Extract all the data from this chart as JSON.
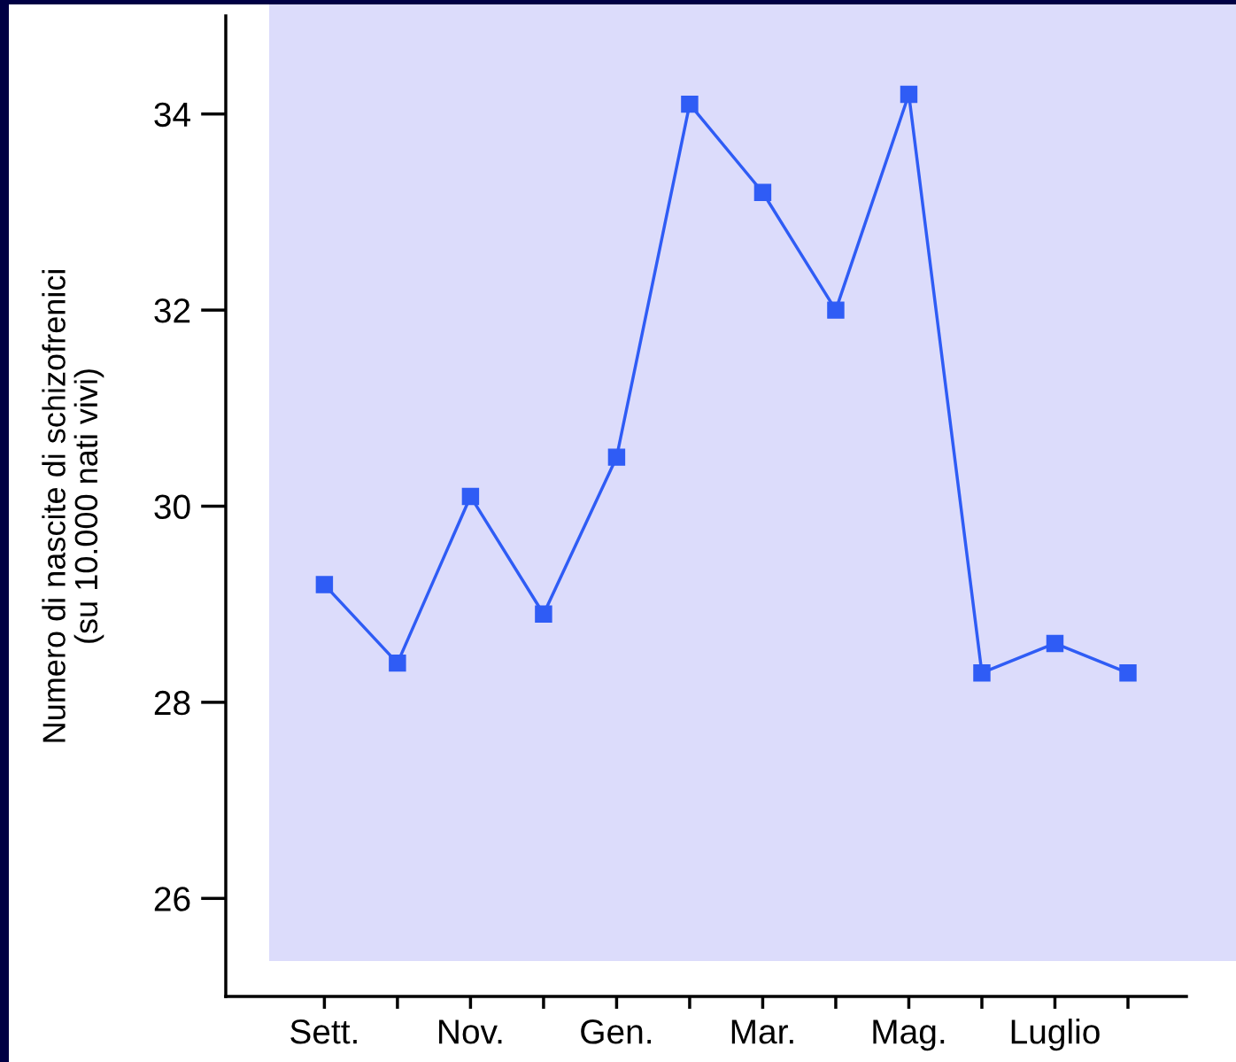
{
  "chart_data": {
    "type": "line",
    "ylabel": "Numero di nascite di schizofrenici\n(su 10.000 nati vivi)",
    "categories": [
      "Sett.",
      null,
      "Nov.",
      null,
      "Gen.",
      null,
      "Mar.",
      null,
      "Mag.",
      null,
      "Luglio",
      null
    ],
    "series": [
      {
        "color": "#2f5cf5",
        "values": [
          29.2,
          28.4,
          30.1,
          28.9,
          30.5,
          34.1,
          33.2,
          32.0,
          34.2,
          28.3,
          28.6,
          28.3
        ]
      }
    ],
    "ylim": [
      25,
      35
    ],
    "yticks": [
      26,
      28,
      30,
      32,
      34
    ],
    "marker": "square",
    "line_style": "solid",
    "grid": false
  }
}
